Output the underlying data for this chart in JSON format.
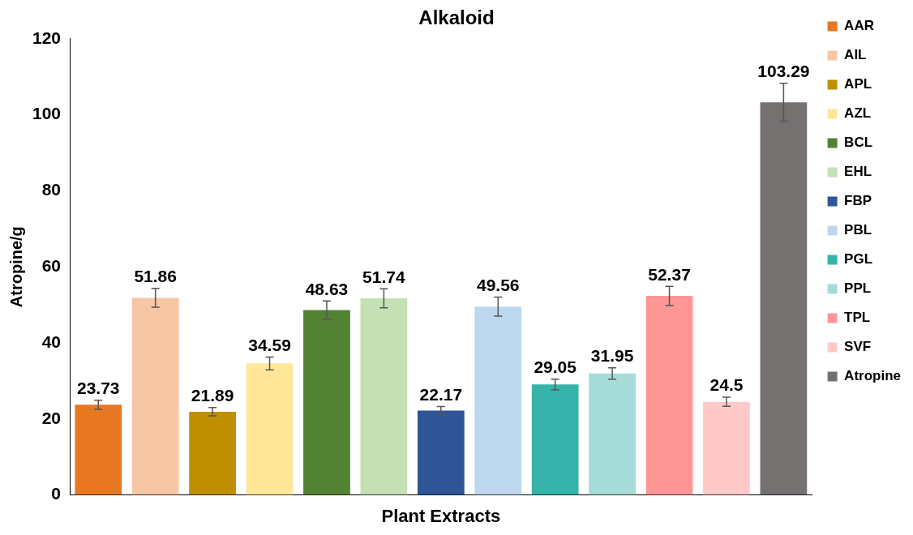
{
  "chart_data": {
    "type": "bar",
    "title": "Alkaloid",
    "xlabel": "Plant Extracts",
    "ylabel": "Atropine/g",
    "categories": [
      null,
      null,
      null,
      null,
      null,
      null,
      null,
      null,
      null,
      null,
      null,
      null,
      null
    ],
    "series": [
      {
        "name": "AAR",
        "color": "#e87722",
        "values": [
          23.73,
          null,
          null,
          null,
          null,
          null,
          null,
          null,
          null,
          null,
          null,
          null,
          null
        ],
        "errors": [
          1.2,
          null,
          null,
          null,
          null,
          null,
          null,
          null,
          null,
          null,
          null,
          null,
          null
        ]
      },
      {
        "name": "AIL",
        "color": "#f7c6a5",
        "values": [
          null,
          51.86,
          null,
          null,
          null,
          null,
          null,
          null,
          null,
          null,
          null,
          null,
          null
        ],
        "errors": [
          null,
          2.5,
          null,
          null,
          null,
          null,
          null,
          null,
          null,
          null,
          null,
          null,
          null
        ]
      },
      {
        "name": "APL",
        "color": "#bf8f00",
        "values": [
          null,
          null,
          21.89,
          null,
          null,
          null,
          null,
          null,
          null,
          null,
          null,
          null,
          null
        ],
        "errors": [
          null,
          null,
          1.1,
          null,
          null,
          null,
          null,
          null,
          null,
          null,
          null,
          null,
          null
        ]
      },
      {
        "name": "AZL",
        "color": "#ffe699",
        "values": [
          null,
          null,
          null,
          34.59,
          null,
          null,
          null,
          null,
          null,
          null,
          null,
          null,
          null
        ],
        "errors": [
          null,
          null,
          null,
          1.7,
          null,
          null,
          null,
          null,
          null,
          null,
          null,
          null,
          null
        ]
      },
      {
        "name": "BCL",
        "color": "#548235",
        "values": [
          null,
          null,
          null,
          null,
          48.63,
          null,
          null,
          null,
          null,
          null,
          null,
          null,
          null
        ],
        "errors": [
          null,
          null,
          null,
          null,
          2.4,
          null,
          null,
          null,
          null,
          null,
          null,
          null,
          null
        ]
      },
      {
        "name": "EHL",
        "color": "#c5e0b4",
        "values": [
          null,
          null,
          null,
          null,
          null,
          51.74,
          null,
          null,
          null,
          null,
          null,
          null,
          null
        ],
        "errors": [
          null,
          null,
          null,
          null,
          null,
          2.5,
          null,
          null,
          null,
          null,
          null,
          null,
          null
        ]
      },
      {
        "name": "FBP",
        "color": "#2f5597",
        "values": [
          null,
          null,
          null,
          null,
          null,
          null,
          22.17,
          null,
          null,
          null,
          null,
          null,
          null
        ],
        "errors": [
          null,
          null,
          null,
          null,
          null,
          null,
          1.1,
          null,
          null,
          null,
          null,
          null,
          null
        ]
      },
      {
        "name": "PBL",
        "color": "#bdd7ee",
        "values": [
          null,
          null,
          null,
          null,
          null,
          null,
          null,
          49.56,
          null,
          null,
          null,
          null,
          null
        ],
        "errors": [
          null,
          null,
          null,
          null,
          null,
          null,
          null,
          2.5,
          null,
          null,
          null,
          null,
          null
        ]
      },
      {
        "name": "PGL",
        "color": "#36b3ab",
        "values": [
          null,
          null,
          null,
          null,
          null,
          null,
          null,
          null,
          29.05,
          null,
          null,
          null,
          null
        ],
        "errors": [
          null,
          null,
          null,
          null,
          null,
          null,
          null,
          null,
          1.4,
          null,
          null,
          null,
          null
        ]
      },
      {
        "name": "PPL",
        "color": "#a6dcd8",
        "values": [
          null,
          null,
          null,
          null,
          null,
          null,
          null,
          null,
          null,
          31.95,
          null,
          null,
          null
        ],
        "errors": [
          null,
          null,
          null,
          null,
          null,
          null,
          null,
          null,
          null,
          1.5,
          null,
          null,
          null
        ]
      },
      {
        "name": "TPL",
        "color": "#ff9696",
        "values": [
          null,
          null,
          null,
          null,
          null,
          null,
          null,
          null,
          null,
          null,
          52.37,
          null,
          null
        ],
        "errors": [
          null,
          null,
          null,
          null,
          null,
          null,
          null,
          null,
          null,
          null,
          2.5,
          null,
          null
        ]
      },
      {
        "name": "SVF",
        "color": "#ffc9c9",
        "values": [
          null,
          null,
          null,
          null,
          null,
          null,
          null,
          null,
          null,
          null,
          null,
          24.5,
          null
        ],
        "errors": [
          null,
          null,
          null,
          null,
          null,
          null,
          null,
          null,
          null,
          null,
          null,
          1.2,
          null
        ]
      },
      {
        "name": "Atropine",
        "color": "#767171",
        "values": [
          null,
          null,
          null,
          null,
          null,
          null,
          null,
          null,
          null,
          null,
          null,
          null,
          103.29
        ],
        "errors": [
          null,
          null,
          null,
          null,
          null,
          null,
          null,
          null,
          null,
          null,
          null,
          null,
          5
        ]
      }
    ],
    "ylim": [
      0,
      120
    ],
    "yticks": [
      0,
      20,
      40,
      60,
      80,
      100,
      120
    ],
    "grid": false,
    "legend": "right",
    "tick_labels": "y",
    "data_labels": true
  }
}
